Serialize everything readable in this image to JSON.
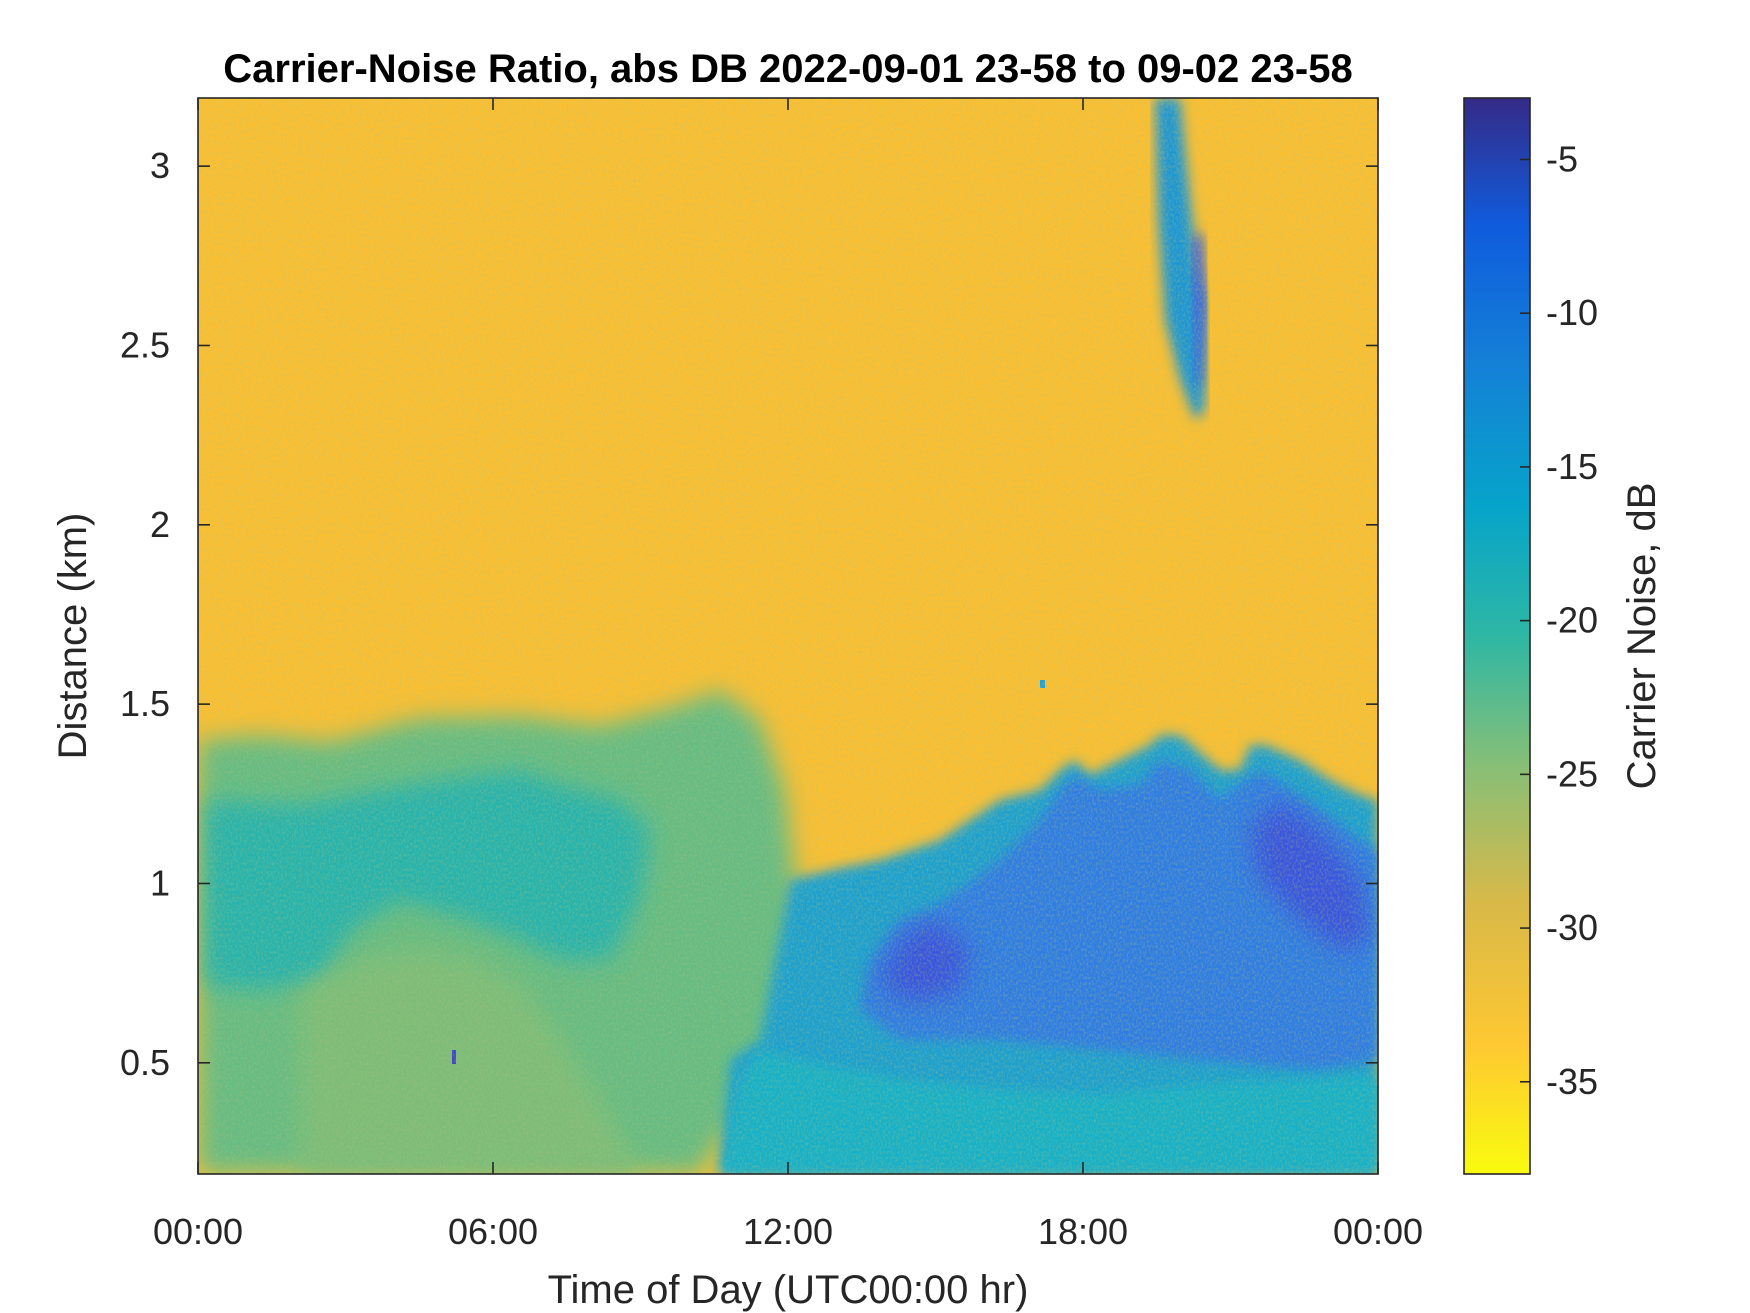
{
  "chart_data": {
    "type": "heatmap",
    "title": "Carrier-Noise Ratio, abs DB 2022-09-01 23-58 to 09-02 23-58",
    "xlabel": "Time of Day (UTC00:00 hr)",
    "ylabel": "Distance (km)",
    "colorbar_label": "Carrier Noise, dB",
    "x_tick_labels": [
      "00:00",
      "06:00",
      "12:00",
      "18:00",
      "00:00"
    ],
    "x_tick_values_hours": [
      0,
      6,
      12,
      18,
      24
    ],
    "xlim_hours": [
      0,
      24
    ],
    "y_tick_labels": [
      "0.5",
      "1",
      "1.5",
      "2",
      "2.5",
      "3"
    ],
    "y_tick_values_km": [
      0.5,
      1,
      1.5,
      2,
      2.5,
      3
    ],
    "ylim_km": [
      0.19,
      3.19
    ],
    "colorbar_tick_labels": [
      "-5",
      "-10",
      "-15",
      "-20",
      "-25",
      "-30",
      "-35"
    ],
    "colorbar_tick_values_db": [
      -5,
      -10,
      -15,
      -20,
      -25,
      -30,
      -35
    ],
    "clim_db": [
      -38,
      -3
    ],
    "colormap": "parula",
    "colormap_stops": [
      "#352a87",
      "#0f5cdd",
      "#1481d6",
      "#06a4ca",
      "#2eb7a4",
      "#87bf77",
      "#d1bb59",
      "#fec832",
      "#f9fb0e"
    ],
    "background_db": -33,
    "regions": [
      {
        "description": "boundary layer",
        "time_hours": [
          0,
          12
        ],
        "distance_km": [
          0.19,
          1.3
        ],
        "value_db": -22
      },
      {
        "description": "afternoon convective layer",
        "time_hours": [
          12,
          24
        ],
        "distance_km": [
          0.19,
          1.4
        ],
        "value_db": -12
      },
      {
        "description": "near-ground layer",
        "time_hours": [
          11,
          24
        ],
        "distance_km": [
          0.19,
          0.5
        ],
        "value_db": -19
      },
      {
        "description": "aloft feature",
        "time_hours": [
          19.8,
          20.8
        ],
        "distance_km": [
          2.3,
          3.19
        ],
        "value_db": -14
      }
    ],
    "grid": false
  }
}
